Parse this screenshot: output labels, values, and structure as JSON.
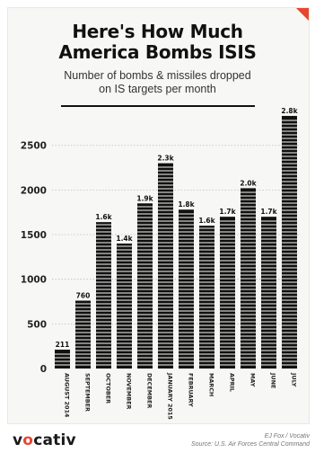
{
  "header": {
    "title_line1": "Here's How Much",
    "title_line2": "America Bombs ISIS",
    "subtitle_line1": "Number of bombs & missiles dropped",
    "subtitle_line2": "on IS targets per month"
  },
  "chart_data": {
    "type": "bar",
    "title": "Here's How Much America Bombs ISIS",
    "subtitle": "Number of bombs & missiles dropped on IS targets per month",
    "categories": [
      "AUGUST 2014",
      "SEPTEMBER",
      "OCTOBER",
      "NOVEMBER",
      "DECEMBER",
      "JANUARY 2015",
      "FEBRUARY",
      "MARCH",
      "APRIL",
      "MAY",
      "JUNE",
      "JULY"
    ],
    "values": [
      211,
      760,
      1640,
      1400,
      1850,
      2300,
      1780,
      1600,
      1700,
      2020,
      1700,
      2830
    ],
    "data_labels": [
      "211",
      "760",
      "1.6k",
      "1.4k",
      "1.9k",
      "2.3k",
      "1.8k",
      "1.6k",
      "1.7k",
      "2.0k",
      "1.7k",
      "2.8k"
    ],
    "yticks": [
      0,
      500,
      1000,
      1500,
      2000,
      2500
    ],
    "ytick_labels": [
      "0",
      "500",
      "1000",
      "1500",
      "2000",
      "2500"
    ],
    "ylim": [
      0,
      2900
    ],
    "grid": true,
    "bar_color": "#111111"
  },
  "footer": {
    "logo_prefix": "v",
    "logo_accent": "o",
    "logo_suffix": "cativ",
    "credit_line1": "EJ Fox / Vocativ",
    "credit_line2": "Source: U.S. Air Forces Central Command"
  },
  "colors": {
    "accent": "#e8452f",
    "bars": "#111111",
    "background": "#f7f7f5"
  }
}
